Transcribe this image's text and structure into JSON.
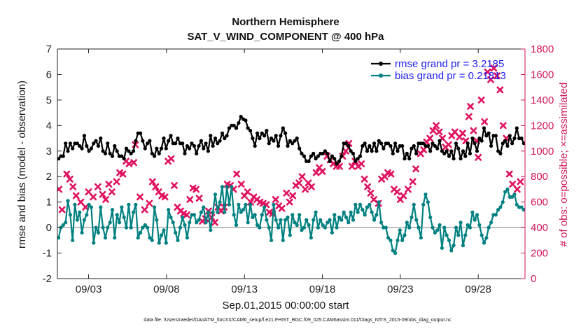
{
  "chart_data": {
    "type": "line",
    "title": "Northern Hemisphere",
    "subtitle": "SAT_V_WIND_COMPONENT @ 400 hPa",
    "xlabel": "Sep.01,2015 00:00:00 start",
    "ylabel": "rmse and bias (model - observation)",
    "y2label": "# of obs: o=possible; ×=assimilated",
    "footnote": "data file: /Users/raeder/DAI/ATM_forcXX/CAM6_setup/f.e21.FHIST_BGC.f09_025.CAM6assim.011/Diags_NTrS_2015-09/obs_diag_output.nc",
    "xlim": [
      1.0,
      31.0
    ],
    "ylim": [
      -2,
      7
    ],
    "y2lim": [
      0,
      1800
    ],
    "x_ticks": [
      3,
      8,
      13,
      18,
      23,
      28
    ],
    "x_tick_labels": [
      "09/03",
      "09/08",
      "09/13",
      "09/18",
      "09/23",
      "09/28"
    ],
    "y_ticks": [
      "-2",
      "-1",
      "0",
      "1",
      "2",
      "3",
      "4",
      "5",
      "6",
      "7"
    ],
    "y2_ticks": [
      "0",
      "200",
      "400",
      "600",
      "800",
      "1000",
      "1200",
      "1400",
      "1600",
      "1800"
    ],
    "zero_line": 0,
    "grid": false,
    "legend_position": "top-right",
    "colors": {
      "rmse": "#000000",
      "bias": "#008080",
      "obs": "#e0115f",
      "axis_right": "#d1165a",
      "legend_text": "#1e1ef0",
      "zero_line": "#b0b0b0"
    },
    "series": [
      {
        "name": "rmse grand pr = 3.2185",
        "axis": "left",
        "values": [
          2.7,
          2.8,
          2.8,
          3.3,
          3.0,
          3.3,
          3.1,
          3.3,
          3.3,
          3.2,
          3.1,
          3.6,
          3.2,
          3.0,
          3.1,
          3.3,
          3.4,
          3.2,
          3.5,
          3.0,
          2.9,
          3.3,
          2.9,
          2.8,
          3.2,
          3.0,
          2.8,
          2.8,
          2.7,
          3.1,
          3.0,
          2.9,
          3.0,
          3.4,
          3.7,
          3.7,
          3.4,
          3.1,
          3.3,
          3.4,
          2.9,
          2.8,
          3.1,
          2.9,
          3.1,
          3.5,
          3.1,
          3.4,
          3.6,
          3.3,
          3.3,
          3.5,
          3.3,
          3.3,
          2.9,
          3.2,
          3.1,
          3.3,
          3.2,
          2.9,
          3.2,
          3.4,
          3.1,
          3.3,
          3.0,
          3.6,
          3.2,
          3.5,
          3.3,
          3.4,
          3.7,
          3.5,
          3.6,
          3.9,
          4.0,
          4.0,
          3.9,
          4.1,
          4.35,
          4.25,
          4.2,
          3.9,
          3.8,
          3.5,
          3.2,
          3.7,
          3.5,
          3.7,
          3.6,
          3.8,
          3.3,
          3.5,
          3.4,
          3.6,
          3.2,
          3.6,
          3.9,
          3.7,
          3.2,
          3.4,
          3.3,
          3.4,
          3.5,
          3.1,
          2.9,
          2.8,
          2.6,
          2.6,
          2.8,
          2.9,
          2.7,
          2.8,
          2.9,
          2.9,
          3.0,
          2.9,
          2.6,
          2.8,
          2.7,
          2.5,
          2.6,
          2.8,
          3.3,
          3.3,
          3.2,
          3.0,
          2.9,
          2.6,
          2.7,
          2.8,
          3.2,
          3.3,
          3.0,
          3.2,
          3.0,
          3.3,
          3.0,
          3.4,
          3.3,
          3.1,
          3.3,
          3.3,
          3.2,
          2.9,
          3.3,
          3.0,
          3.2,
          3.2,
          2.7,
          2.9,
          2.7,
          3.1,
          3.2,
          2.9,
          3.3,
          3.3,
          3.3,
          3.2,
          3.2,
          3.0,
          3.3,
          3.2,
          3.1,
          3.4,
          3.0,
          2.9,
          3.0,
          2.8,
          3.0,
          2.7,
          3.3,
          3.1,
          2.7,
          3.0,
          2.8,
          3.3,
          2.9,
          3.5,
          3.3,
          3.0,
          3.5,
          3.4,
          3.9,
          3.6,
          3.7,
          3.2,
          3.6,
          3.6,
          3.0,
          2.9,
          3.3,
          3.4,
          3.2,
          3.6,
          3.3,
          3.5,
          3.9,
          3.5,
          3.5,
          3.3
        ]
      },
      {
        "name": "bias grand pr = 0.21813",
        "axis": "left",
        "values": [
          -0.4,
          0.0,
          0.1,
          0.2,
          1.05,
          0.5,
          -0.5,
          0.9,
          0.3,
          0.6,
          -0.2,
          0.3,
          0.5,
          0.9,
          0.8,
          -0.6,
          0.0,
          -0.2,
          0.8,
          0.0,
          -0.4,
          0.0,
          0.2,
          0.7,
          -0.4,
          0.5,
          0.2,
          0.8,
          0.4,
          0.0,
          0.9,
          0.0,
          0.6,
          0.9,
          -0.4,
          -0.2,
          0.0,
          0.1,
          0.0,
          -0.4,
          -0.5,
          0.8,
          0.3,
          -0.6,
          -0.3,
          -0.1,
          -0.6,
          0.7,
          0.4,
          0.2,
          -0.2,
          -0.5,
          0.0,
          0.4,
          0.1,
          -0.4,
          0.2,
          0.5,
          0.5,
          0.2,
          0.3,
          0.6,
          0.8,
          0.2,
          0.6,
          -0.1,
          0.6,
          1.3,
          0.6,
          1.0,
          1.6,
          0.6,
          1.6,
          0.9,
          1.6,
          0.5,
          0.1,
          0.9,
          0.6,
          0.7,
          0.9,
          0.2,
          0.9,
          0.4,
          0.5,
          0.1,
          0.0,
          0.5,
          0.8,
          0.3,
          0.0,
          -0.5,
          0.9,
          0.3,
          0.0,
          0.3,
          -0.5,
          0.3,
          0.4,
          -0.3,
          0.5,
          0.2,
          0.1,
          0.5,
          -0.1,
          0.0,
          0.3,
          0.1,
          -0.4,
          0.3,
          0.6,
          0.0,
          0.3,
          0.1,
          0.0,
          0.2,
          0.3,
          -0.2,
          0.5,
          0.0,
          0.4,
          0.3,
          0.6,
          0.4,
          0.2,
          0.6,
          0.3,
          0.9,
          0.6,
          0.9,
          0.7,
          0.5,
          0.8,
          0.9,
          0.6,
          0.3,
          0.5,
          1.0,
          0.2,
          0.0,
          0.0,
          -0.4,
          -0.5,
          -0.9,
          -1.0,
          -0.5,
          -0.1,
          -0.5,
          -0.3,
          0.2,
          0.0,
          0.4,
          0.9,
          0.3,
          0.0,
          -0.4,
          0.9,
          1.3,
          1.0,
          0.4,
          0.0,
          -0.2,
          -0.1,
          0.1,
          -0.8,
          0.0,
          -0.3,
          -0.5,
          -0.9,
          -0.7,
          0.0,
          -0.3,
          0.2,
          -0.7,
          -0.3,
          0.1,
          0.0,
          0.6,
          0.3,
          0.5,
          0.1,
          -0.3,
          -0.6,
          -0.4,
          0.0,
          0.2,
          0.5,
          0.5,
          0.7,
          0.8,
          1.0,
          1.4,
          1.5,
          1.2,
          1.2,
          1.3,
          0.9,
          0.8,
          0.8,
          0.7
        ]
      },
      {
        "name": "# of obs assimilated",
        "axis": "right",
        "marker": "x",
        "points": [
          [
            1.1,
            700
          ],
          [
            1.3,
            540
          ],
          [
            1.6,
            820
          ],
          [
            1.8,
            780
          ],
          [
            2.0,
            720
          ],
          [
            2.2,
            650
          ],
          [
            2.5,
            600
          ],
          [
            2.8,
            560
          ],
          [
            3.0,
            680
          ],
          [
            3.3,
            640
          ],
          [
            3.6,
            720
          ],
          [
            3.9,
            660
          ],
          [
            4.1,
            620
          ],
          [
            4.3,
            740
          ],
          [
            4.5,
            680
          ],
          [
            4.8,
            760
          ],
          [
            5.0,
            830
          ],
          [
            5.2,
            820
          ],
          [
            5.4,
            920
          ],
          [
            5.6,
            900
          ],
          [
            5.9,
            910
          ],
          [
            6.0,
            1050
          ],
          [
            6.3,
            640
          ],
          [
            6.6,
            540
          ],
          [
            6.9,
            590
          ],
          [
            7.1,
            760
          ],
          [
            7.3,
            720
          ],
          [
            7.5,
            680
          ],
          [
            7.7,
            650
          ],
          [
            7.9,
            640
          ],
          [
            8.1,
            920
          ],
          [
            8.3,
            940
          ],
          [
            8.5,
            730
          ],
          [
            8.7,
            560
          ],
          [
            8.9,
            530
          ],
          [
            9.1,
            510
          ],
          [
            9.3,
            500
          ],
          [
            9.5,
            620
          ],
          [
            9.7,
            710
          ],
          [
            9.9,
            700
          ],
          [
            10.1,
            630
          ],
          [
            10.3,
            450
          ],
          [
            10.5,
            470
          ],
          [
            10.7,
            530
          ],
          [
            10.9,
            480
          ],
          [
            11.1,
            440
          ],
          [
            11.3,
            560
          ],
          [
            11.5,
            530
          ],
          [
            11.7,
            560
          ],
          [
            11.9,
            740
          ],
          [
            12.1,
            730
          ],
          [
            12.3,
            700
          ],
          [
            12.5,
            820
          ],
          [
            12.8,
            740
          ],
          [
            13.0,
            650
          ],
          [
            13.2,
            680
          ],
          [
            13.4,
            600
          ],
          [
            13.6,
            640
          ],
          [
            13.8,
            620
          ],
          [
            14.0,
            600
          ],
          [
            14.2,
            590
          ],
          [
            14.4,
            580
          ],
          [
            14.6,
            520
          ],
          [
            14.8,
            510
          ],
          [
            15.0,
            620
          ],
          [
            15.2,
            570
          ],
          [
            15.4,
            550
          ],
          [
            15.7,
            670
          ],
          [
            15.9,
            600
          ],
          [
            16.1,
            650
          ],
          [
            16.3,
            730
          ],
          [
            16.5,
            750
          ],
          [
            16.7,
            800
          ],
          [
            16.9,
            700
          ],
          [
            17.1,
            750
          ],
          [
            17.3,
            720
          ],
          [
            17.6,
            830
          ],
          [
            17.8,
            870
          ],
          [
            18.0,
            840
          ],
          [
            18.3,
            960
          ],
          [
            18.5,
            930
          ],
          [
            18.7,
            900
          ],
          [
            18.9,
            880
          ],
          [
            19.1,
            880
          ],
          [
            19.3,
            960
          ],
          [
            19.5,
            1000
          ],
          [
            19.7,
            1060
          ],
          [
            19.9,
            880
          ],
          [
            20.1,
            920
          ],
          [
            20.3,
            880
          ],
          [
            20.5,
            900
          ],
          [
            20.7,
            780
          ],
          [
            20.9,
            720
          ],
          [
            21.1,
            670
          ],
          [
            21.3,
            620
          ],
          [
            21.6,
            590
          ],
          [
            21.8,
            780
          ],
          [
            22.0,
            800
          ],
          [
            22.2,
            830
          ],
          [
            22.4,
            820
          ],
          [
            22.6,
            700
          ],
          [
            22.8,
            680
          ],
          [
            23.0,
            620
          ],
          [
            23.2,
            650
          ],
          [
            23.5,
            700
          ],
          [
            23.8,
            760
          ],
          [
            24.0,
            860
          ],
          [
            24.3,
            980
          ],
          [
            24.5,
            1010
          ],
          [
            24.7,
            1070
          ],
          [
            24.9,
            1100
          ],
          [
            25.1,
            1160
          ],
          [
            25.3,
            1200
          ],
          [
            25.5,
            1150
          ],
          [
            25.7,
            1100
          ],
          [
            25.9,
            1030
          ],
          [
            26.1,
            1050
          ],
          [
            26.3,
            1120
          ],
          [
            26.5,
            1150
          ],
          [
            26.8,
            1110
          ],
          [
            27.0,
            1140
          ],
          [
            27.2,
            1080
          ],
          [
            27.4,
            1270
          ],
          [
            27.5,
            1350
          ],
          [
            27.7,
            1160
          ],
          [
            27.9,
            1080
          ],
          [
            28.0,
            950
          ],
          [
            28.2,
            1400
          ],
          [
            28.4,
            1230
          ],
          [
            28.6,
            1620
          ],
          [
            28.8,
            1560
          ],
          [
            29.0,
            1650
          ],
          [
            29.2,
            1590
          ],
          [
            29.4,
            1480
          ],
          [
            29.6,
            1200
          ],
          [
            29.8,
            1100
          ],
          [
            30.0,
            820
          ],
          [
            30.2,
            740
          ],
          [
            30.5,
            700
          ],
          [
            30.7,
            760
          ]
        ]
      }
    ]
  }
}
